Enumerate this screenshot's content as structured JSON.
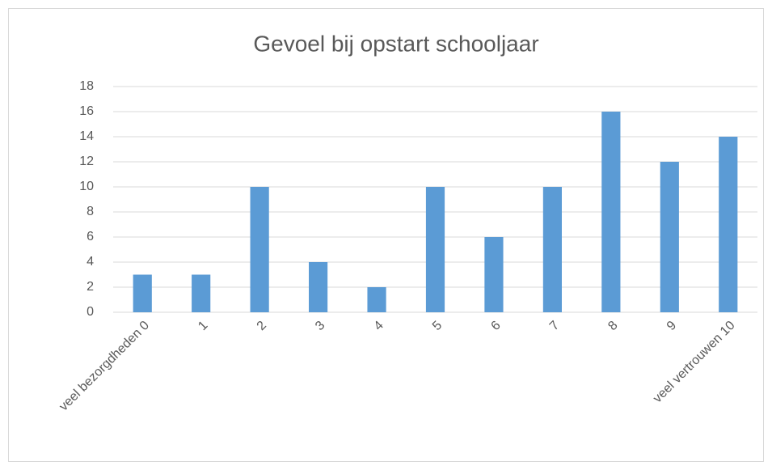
{
  "chart_data": {
    "type": "bar",
    "title": "Gevoel bij opstart schooljaar",
    "categories": [
      "veel bezorgdheden 0",
      "1",
      "2",
      "3",
      "4",
      "5",
      "6",
      "7",
      "8",
      "9",
      "veel vertrouwen 10"
    ],
    "values": [
      3,
      3,
      10,
      4,
      2,
      10,
      6,
      10,
      16,
      12,
      14
    ],
    "color": "#5b9bd5",
    "ylim": [
      0,
      18
    ],
    "yticks": [
      0,
      2,
      4,
      6,
      8,
      10,
      12,
      14,
      16,
      18
    ],
    "grid": true
  }
}
